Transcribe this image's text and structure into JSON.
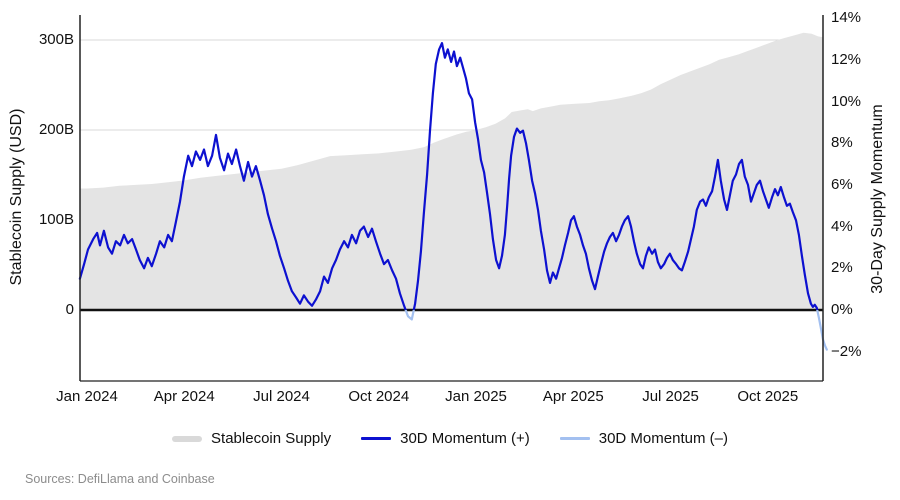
{
  "chart": {
    "left_axis_title": "Stablecoin Supply (USD)",
    "right_axis_title": "30-Day Supply Momentum",
    "source_note": "Sources: DefiLlama and Coinbase",
    "legend": [
      {
        "label": "Stablecoin Supply",
        "swatch": "area",
        "color": "#d9d9d9"
      },
      {
        "label": "30D Momentum (+)",
        "swatch": "line",
        "color": "#0d11d0"
      },
      {
        "label": "30D Momentum (–)",
        "swatch": "line",
        "color": "#a3c0f0"
      }
    ],
    "colors": {
      "area": "#e4e4e4",
      "momentum_positive": "#0d11d0",
      "momentum_negative": "#a3c0f0",
      "gridline": "#d8d8d8",
      "zero_line": "#111111",
      "spine": "#222222"
    }
  },
  "chart_data": {
    "type": "line",
    "title": "",
    "x_unit": "months since Jan 2024",
    "x_axis": {
      "tick_labels": [
        "Jan 2024",
        "Apr 2024",
        "Jul 2024",
        "Oct 2024",
        "Jan 2025",
        "Apr 2025",
        "Jul 2025",
        "Oct 2025"
      ],
      "tick_positions": [
        0,
        3,
        6,
        9,
        12,
        15,
        18,
        21
      ],
      "range": [
        -0.22,
        22.9
      ]
    },
    "left_axis": {
      "label": "Stablecoin Supply (USD)",
      "unit": "billions USD",
      "tick_labels": [
        "300B",
        "200B",
        "100B",
        "0"
      ],
      "tick_values": [
        300,
        200,
        100,
        0
      ],
      "range": [
        0,
        328
      ]
    },
    "right_axis": {
      "label": "30-Day Supply Momentum",
      "unit": "%",
      "tick_labels": [
        "14%",
        "12%",
        "10%",
        "8%",
        "6%",
        "4%",
        "2%",
        "0%",
        "−2%"
      ],
      "tick_values": [
        14,
        12,
        10,
        8,
        6,
        4,
        2,
        0,
        -2
      ],
      "range": [
        -3.4,
        14.15
      ]
    },
    "series": [
      {
        "name": "Stablecoin Supply",
        "type": "area",
        "axis": "left",
        "points": [
          [
            -0.22,
            135
          ],
          [
            0,
            135
          ],
          [
            0.5,
            136
          ],
          [
            1,
            138
          ],
          [
            1.5,
            139
          ],
          [
            2,
            140
          ],
          [
            2.5,
            142
          ],
          [
            3,
            144
          ],
          [
            3.5,
            147
          ],
          [
            4,
            149
          ],
          [
            4.5,
            151
          ],
          [
            5,
            153
          ],
          [
            5.5,
            155
          ],
          [
            6,
            157
          ],
          [
            6.5,
            161
          ],
          [
            7,
            166
          ],
          [
            7.5,
            171
          ],
          [
            8,
            172
          ],
          [
            8.5,
            173
          ],
          [
            9,
            174
          ],
          [
            9.5,
            176
          ],
          [
            10,
            178
          ],
          [
            10.4,
            181
          ],
          [
            10.7,
            186
          ],
          [
            11,
            190
          ],
          [
            11.4,
            195
          ],
          [
            11.7,
            198
          ],
          [
            12,
            200
          ],
          [
            12.3,
            203
          ],
          [
            12.6,
            207
          ],
          [
            12.9,
            213
          ],
          [
            13.1,
            220
          ],
          [
            13.4,
            222
          ],
          [
            13.6,
            223
          ],
          [
            13.75,
            221
          ],
          [
            14,
            224
          ],
          [
            14.3,
            226
          ],
          [
            14.6,
            228
          ],
          [
            15,
            229
          ],
          [
            15.5,
            230
          ],
          [
            15.8,
            232
          ],
          [
            16.1,
            233
          ],
          [
            16.4,
            235
          ],
          [
            16.8,
            238
          ],
          [
            17.1,
            241
          ],
          [
            17.4,
            245
          ],
          [
            17.7,
            251
          ],
          [
            18,
            256
          ],
          [
            18.3,
            261
          ],
          [
            18.6,
            265
          ],
          [
            18.9,
            269
          ],
          [
            19.2,
            273
          ],
          [
            19.5,
            278
          ],
          [
            19.8,
            281
          ],
          [
            20.1,
            284
          ],
          [
            20.4,
            288
          ],
          [
            20.7,
            292
          ],
          [
            21,
            296
          ],
          [
            21.3,
            300
          ],
          [
            21.6,
            303
          ],
          [
            21.9,
            306
          ],
          [
            22.1,
            308
          ],
          [
            22.35,
            307
          ],
          [
            22.55,
            304
          ],
          [
            22.7,
            303
          ]
        ]
      },
      {
        "name": "30D Momentum",
        "type": "line",
        "axis": "right",
        "points": [
          [
            -0.22,
            1.5
          ],
          [
            -0.09,
            2.2
          ],
          [
            0.03,
            2.9
          ],
          [
            0.19,
            3.4
          ],
          [
            0.31,
            3.7
          ],
          [
            0.4,
            3.1
          ],
          [
            0.52,
            3.8
          ],
          [
            0.65,
            3.0
          ],
          [
            0.77,
            2.7
          ],
          [
            0.89,
            3.3
          ],
          [
            1.02,
            3.1
          ],
          [
            1.14,
            3.6
          ],
          [
            1.26,
            3.2
          ],
          [
            1.39,
            3.4
          ],
          [
            1.51,
            2.9
          ],
          [
            1.63,
            2.4
          ],
          [
            1.76,
            2.0
          ],
          [
            1.88,
            2.5
          ],
          [
            2.0,
            2.1
          ],
          [
            2.13,
            2.7
          ],
          [
            2.25,
            3.3
          ],
          [
            2.38,
            3.0
          ],
          [
            2.5,
            3.6
          ],
          [
            2.62,
            3.3
          ],
          [
            2.74,
            4.2
          ],
          [
            2.87,
            5.2
          ],
          [
            2.99,
            6.4
          ],
          [
            3.12,
            7.4
          ],
          [
            3.24,
            6.9
          ],
          [
            3.36,
            7.6
          ],
          [
            3.49,
            7.2
          ],
          [
            3.61,
            7.7
          ],
          [
            3.73,
            6.9
          ],
          [
            3.86,
            7.4
          ],
          [
            3.98,
            8.4
          ],
          [
            4.1,
            7.3
          ],
          [
            4.23,
            6.7
          ],
          [
            4.35,
            7.5
          ],
          [
            4.47,
            7.0
          ],
          [
            4.6,
            7.7
          ],
          [
            4.72,
            6.9
          ],
          [
            4.84,
            6.2
          ],
          [
            4.97,
            7.1
          ],
          [
            5.09,
            6.4
          ],
          [
            5.21,
            6.9
          ],
          [
            5.34,
            6.2
          ],
          [
            5.46,
            5.5
          ],
          [
            5.58,
            4.6
          ],
          [
            5.71,
            3.9
          ],
          [
            5.83,
            3.3
          ],
          [
            5.95,
            2.6
          ],
          [
            6.08,
            2.0
          ],
          [
            6.2,
            1.4
          ],
          [
            6.32,
            0.9
          ],
          [
            6.45,
            0.6
          ],
          [
            6.57,
            0.3
          ],
          [
            6.69,
            0.7
          ],
          [
            6.82,
            0.4
          ],
          [
            6.94,
            0.2
          ],
          [
            7.06,
            0.5
          ],
          [
            7.19,
            0.9
          ],
          [
            7.31,
            1.6
          ],
          [
            7.43,
            1.3
          ],
          [
            7.56,
            2.0
          ],
          [
            7.68,
            2.4
          ],
          [
            7.8,
            2.9
          ],
          [
            7.93,
            3.3
          ],
          [
            8.05,
            3.0
          ],
          [
            8.17,
            3.6
          ],
          [
            8.3,
            3.2
          ],
          [
            8.42,
            3.8
          ],
          [
            8.54,
            4.0
          ],
          [
            8.67,
            3.5
          ],
          [
            8.79,
            3.9
          ],
          [
            8.91,
            3.3
          ],
          [
            9.04,
            2.7
          ],
          [
            9.16,
            2.2
          ],
          [
            9.28,
            2.4
          ],
          [
            9.41,
            1.9
          ],
          [
            9.53,
            1.5
          ],
          [
            9.65,
            0.8
          ],
          [
            9.78,
            0.2
          ],
          [
            9.9,
            -0.3
          ],
          [
            10.02,
            -0.45
          ],
          [
            10.12,
            0.3
          ],
          [
            10.21,
            1.4
          ],
          [
            10.3,
            2.8
          ],
          [
            10.39,
            4.6
          ],
          [
            10.49,
            6.5
          ],
          [
            10.58,
            8.6
          ],
          [
            10.67,
            10.4
          ],
          [
            10.76,
            11.8
          ],
          [
            10.86,
            12.5
          ],
          [
            10.95,
            12.8
          ],
          [
            11.04,
            12.1
          ],
          [
            11.13,
            12.5
          ],
          [
            11.23,
            11.9
          ],
          [
            11.32,
            12.4
          ],
          [
            11.41,
            11.7
          ],
          [
            11.51,
            12.1
          ],
          [
            11.6,
            11.6
          ],
          [
            11.69,
            11.1
          ],
          [
            11.78,
            10.4
          ],
          [
            11.88,
            10.1
          ],
          [
            11.97,
            9.0
          ],
          [
            12.06,
            8.2
          ],
          [
            12.15,
            7.2
          ],
          [
            12.25,
            6.6
          ],
          [
            12.34,
            5.6
          ],
          [
            12.43,
            4.6
          ],
          [
            12.52,
            3.4
          ],
          [
            12.62,
            2.4
          ],
          [
            12.71,
            2.0
          ],
          [
            12.8,
            2.6
          ],
          [
            12.89,
            3.6
          ],
          [
            12.96,
            5.0
          ],
          [
            13.02,
            6.3
          ],
          [
            13.08,
            7.4
          ],
          [
            13.17,
            8.3
          ],
          [
            13.26,
            8.7
          ],
          [
            13.36,
            8.5
          ],
          [
            13.45,
            8.6
          ],
          [
            13.54,
            8.0
          ],
          [
            13.63,
            7.2
          ],
          [
            13.73,
            6.2
          ],
          [
            13.82,
            5.6
          ],
          [
            13.91,
            4.8
          ],
          [
            14.0,
            3.8
          ],
          [
            14.1,
            2.9
          ],
          [
            14.19,
            1.9
          ],
          [
            14.28,
            1.3
          ],
          [
            14.37,
            1.8
          ],
          [
            14.47,
            1.5
          ],
          [
            14.56,
            2.0
          ],
          [
            14.65,
            2.5
          ],
          [
            14.74,
            3.1
          ],
          [
            14.84,
            3.7
          ],
          [
            14.93,
            4.3
          ],
          [
            15.02,
            4.5
          ],
          [
            15.11,
            4.0
          ],
          [
            15.21,
            3.6
          ],
          [
            15.3,
            3.1
          ],
          [
            15.39,
            2.7
          ],
          [
            15.48,
            2.0
          ],
          [
            15.58,
            1.4
          ],
          [
            15.67,
            1.0
          ],
          [
            15.76,
            1.6
          ],
          [
            15.85,
            2.2
          ],
          [
            15.95,
            2.8
          ],
          [
            16.04,
            3.2
          ],
          [
            16.13,
            3.5
          ],
          [
            16.22,
            3.7
          ],
          [
            16.32,
            3.3
          ],
          [
            16.41,
            3.6
          ],
          [
            16.5,
            4.0
          ],
          [
            16.59,
            4.3
          ],
          [
            16.69,
            4.5
          ],
          [
            16.78,
            4.0
          ],
          [
            16.87,
            3.3
          ],
          [
            16.96,
            2.7
          ],
          [
            17.06,
            2.2
          ],
          [
            17.15,
            2.0
          ],
          [
            17.24,
            2.6
          ],
          [
            17.33,
            3.0
          ],
          [
            17.43,
            2.7
          ],
          [
            17.52,
            2.9
          ],
          [
            17.61,
            2.3
          ],
          [
            17.7,
            2.0
          ],
          [
            17.8,
            2.2
          ],
          [
            17.89,
            2.5
          ],
          [
            17.98,
            2.7
          ],
          [
            18.07,
            2.4
          ],
          [
            18.17,
            2.2
          ],
          [
            18.26,
            2.0
          ],
          [
            18.35,
            1.9
          ],
          [
            18.44,
            2.3
          ],
          [
            18.54,
            2.8
          ],
          [
            18.63,
            3.4
          ],
          [
            18.72,
            4.0
          ],
          [
            18.81,
            4.8
          ],
          [
            18.91,
            5.2
          ],
          [
            19.0,
            5.3
          ],
          [
            19.09,
            5.0
          ],
          [
            19.18,
            5.4
          ],
          [
            19.28,
            5.7
          ],
          [
            19.37,
            6.4
          ],
          [
            19.46,
            7.2
          ],
          [
            19.55,
            6.2
          ],
          [
            19.65,
            5.3
          ],
          [
            19.74,
            4.8
          ],
          [
            19.83,
            5.5
          ],
          [
            19.92,
            6.2
          ],
          [
            20.02,
            6.5
          ],
          [
            20.11,
            7.0
          ],
          [
            20.2,
            7.2
          ],
          [
            20.29,
            6.4
          ],
          [
            20.39,
            6.0
          ],
          [
            20.48,
            5.2
          ],
          [
            20.57,
            5.6
          ],
          [
            20.66,
            6.0
          ],
          [
            20.76,
            6.2
          ],
          [
            20.85,
            5.7
          ],
          [
            20.94,
            5.3
          ],
          [
            21.03,
            4.9
          ],
          [
            21.13,
            5.4
          ],
          [
            21.22,
            5.8
          ],
          [
            21.31,
            5.5
          ],
          [
            21.4,
            5.9
          ],
          [
            21.5,
            5.4
          ],
          [
            21.59,
            5.0
          ],
          [
            21.68,
            5.1
          ],
          [
            21.77,
            4.7
          ],
          [
            21.87,
            4.3
          ],
          [
            21.96,
            3.6
          ],
          [
            22.05,
            2.6
          ],
          [
            22.14,
            1.7
          ],
          [
            22.24,
            0.8
          ],
          [
            22.33,
            0.3
          ],
          [
            22.39,
            0.15
          ],
          [
            22.45,
            0.25
          ],
          [
            22.51,
            0.1
          ],
          [
            22.58,
            -0.4
          ],
          [
            22.64,
            -0.9
          ],
          [
            22.7,
            -1.4
          ],
          [
            22.76,
            -1.7
          ],
          [
            22.82,
            -1.9
          ]
        ]
      }
    ]
  }
}
